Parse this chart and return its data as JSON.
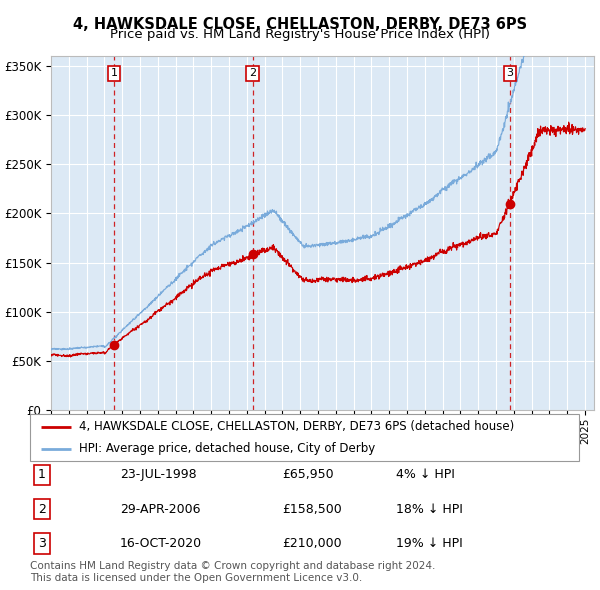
{
  "title_line1": "4, HAWKSDALE CLOSE, CHELLASTON, DERBY, DE73 6PS",
  "title_line2": "Price paid vs. HM Land Registry's House Price Index (HPI)",
  "sale_label1": "4, HAWKSDALE CLOSE, CHELLASTON, DERBY, DE73 6PS (detached house)",
  "sale_label2": "HPI: Average price, detached house, City of Derby",
  "price_color": "#cc0000",
  "hpi_color": "#7aabdb",
  "dashed_line_color": "#cc0000",
  "background_plot": "#dce9f5",
  "background_fig": "#ffffff",
  "grid_color": "#ffffff",
  "ylim": [
    0,
    360000
  ],
  "yticks": [
    0,
    50000,
    100000,
    150000,
    200000,
    250000,
    300000,
    350000
  ],
  "ytick_labels": [
    "£0",
    "£50K",
    "£100K",
    "£150K",
    "£200K",
    "£250K",
    "£300K",
    "£350K"
  ],
  "xlim_start": 1995.0,
  "xlim_end": 2025.5,
  "sale_years": [
    1998.55,
    2006.32,
    2020.79
  ],
  "sale_prices": [
    65950,
    158500,
    210000
  ],
  "sale_nums": [
    1,
    2,
    3
  ],
  "footer": "Contains HM Land Registry data © Crown copyright and database right 2024.\nThis data is licensed under the Open Government Licence v3.0.",
  "title_fontsize": 10.5,
  "subtitle_fontsize": 9.5,
  "axis_fontsize": 8.5,
  "legend_fontsize": 8.5,
  "table_fontsize": 9,
  "footer_fontsize": 7.5,
  "table_data": [
    [
      "1",
      "23-JUL-1998",
      "£65,950",
      "4% ↓ HPI"
    ],
    [
      "2",
      "29-APR-2006",
      "£158,500",
      "18% ↓ HPI"
    ],
    [
      "3",
      "16-OCT-2020",
      "£210,000",
      "19% ↓ HPI"
    ]
  ]
}
